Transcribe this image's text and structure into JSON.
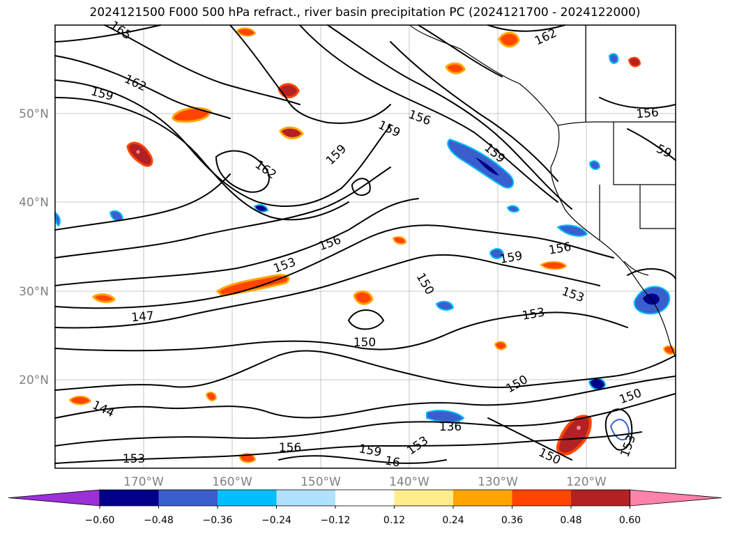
{
  "title": "2024121500 F000 500 hPa refract., river basin precipitation PC (2024121700 - 2024122000)",
  "map": {
    "lat_ticks": [
      "50°N",
      "40°N",
      "30°N",
      "20°N"
    ],
    "lon_ticks": [
      "170°W",
      "160°W",
      "150°W",
      "140°W",
      "130°W",
      "120°W"
    ]
  },
  "contour_labels": [
    {
      "text": "165",
      "rot": 35
    },
    {
      "text": "162",
      "rot": 25
    },
    {
      "text": "159",
      "rot": 15
    },
    {
      "text": "162",
      "rot": -25
    },
    {
      "text": "156",
      "rot": 20
    },
    {
      "text": "159",
      "rot": 25
    },
    {
      "text": "159",
      "rot": -45
    },
    {
      "text": "162",
      "rot": 35
    },
    {
      "text": "159",
      "rot": 40
    },
    {
      "text": "156",
      "rot": -5
    },
    {
      "text": "59",
      "rot": 25
    },
    {
      "text": "156",
      "rot": -20
    },
    {
      "text": "153",
      "rot": -20
    },
    {
      "text": "147",
      "rot": -5
    },
    {
      "text": "150",
      "rot": 60
    },
    {
      "text": "159",
      "rot": -10
    },
    {
      "text": "156",
      "rot": -10
    },
    {
      "text": "153",
      "rot": 20
    },
    {
      "text": "153",
      "rot": -10
    },
    {
      "text": "150",
      "rot": 0
    },
    {
      "text": "150",
      "rot": -30
    },
    {
      "text": "144",
      "rot": 25
    },
    {
      "text": "150",
      "rot": -20
    },
    {
      "text": "136",
      "rot": 0
    },
    {
      "text": "153",
      "rot": -35
    },
    {
      "text": "159",
      "rot": 10
    },
    {
      "text": "16",
      "rot": 10
    },
    {
      "text": "156",
      "rot": 0
    },
    {
      "text": "153",
      "rot": 0
    },
    {
      "text": "150",
      "rot": 25
    },
    {
      "text": "153",
      "rot": -70
    }
  ],
  "colorbar": {
    "ticks": [
      "−0.60",
      "−0.48",
      "−0.36",
      "−0.24",
      "−0.12",
      "0.12",
      "0.24",
      "0.36",
      "0.48",
      "0.60"
    ],
    "colors": [
      "#9b30d9",
      "#00008b",
      "#3a5fcd",
      "#00bfff",
      "#b0e2ff",
      "#ffffff",
      "#ffec8b",
      "#ffa500",
      "#ff4500",
      "#b22222",
      "#ff82ab"
    ]
  }
}
